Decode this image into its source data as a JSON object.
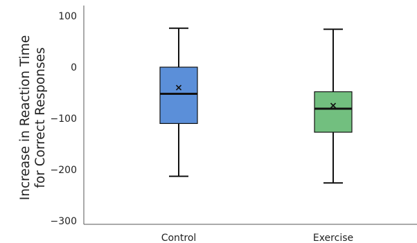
{
  "chart_data": {
    "type": "boxplot",
    "title": "",
    "xlabel": "",
    "ylabel_lines": [
      "Increase in Reaction Time",
      "for Correct Responses"
    ],
    "ylim": [
      -320,
      110
    ],
    "yticks": [
      100,
      0,
      -100,
      -200,
      -300
    ],
    "grid": false,
    "categories": [
      "Control",
      "Exercise"
    ],
    "series": [
      {
        "category": "Control",
        "color": "#5b8fd9",
        "whisker_low": -213,
        "q1": -110,
        "median": -52,
        "q3": 0,
        "whisker_high": 76,
        "mean": -40,
        "mean_marker": "x"
      },
      {
        "category": "Exercise",
        "color": "#72bf7f",
        "whisker_low": -226,
        "q1": -127,
        "median": -81,
        "q3": -48,
        "whisker_high": 74,
        "mean": -75,
        "mean_marker": "x"
      }
    ]
  }
}
